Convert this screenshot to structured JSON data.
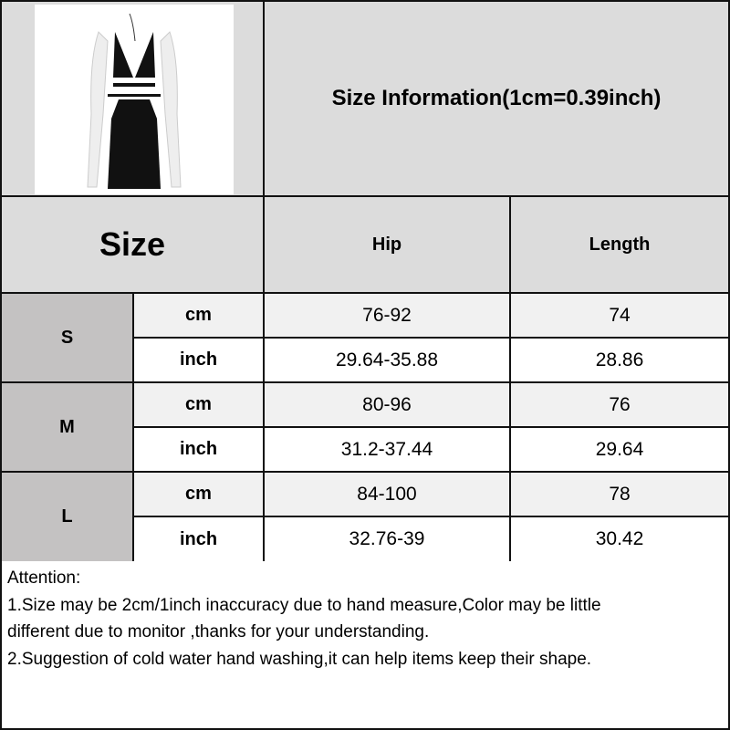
{
  "title": "Size Information(1cm=0.39inch)",
  "header": {
    "size": "Size",
    "hip": "Hip",
    "length": "Length"
  },
  "rows": [
    {
      "size": "S",
      "cm": {
        "unit": "cm",
        "hip": "76-92",
        "length": "74"
      },
      "inch": {
        "unit": "inch",
        "hip": "29.64-35.88",
        "length": "28.86"
      }
    },
    {
      "size": "M",
      "cm": {
        "unit": "cm",
        "hip": "80-96",
        "length": "76"
      },
      "inch": {
        "unit": "inch",
        "hip": "31.2-37.44",
        "length": "29.64"
      }
    },
    {
      "size": "L",
      "cm": {
        "unit": "cm",
        "hip": "84-100",
        "length": "78"
      },
      "inch": {
        "unit": "inch",
        "hip": "32.76-39",
        "length": "30.42"
      }
    }
  ],
  "notes": [
    "Attention:",
    "1.Size may be 2cm/1inch inaccuracy due to hand measure,Color may be little",
    "different due to monitor ,thanks for your understanding.",
    "2.Suggestion of cold water hand washing,it can help items keep their shape."
  ],
  "colors": {
    "header_bg": "#dcdcdc",
    "size_col_bg": "#c4c2c2",
    "cm_row_bg": "#f1f1f1",
    "border": "#111111"
  }
}
